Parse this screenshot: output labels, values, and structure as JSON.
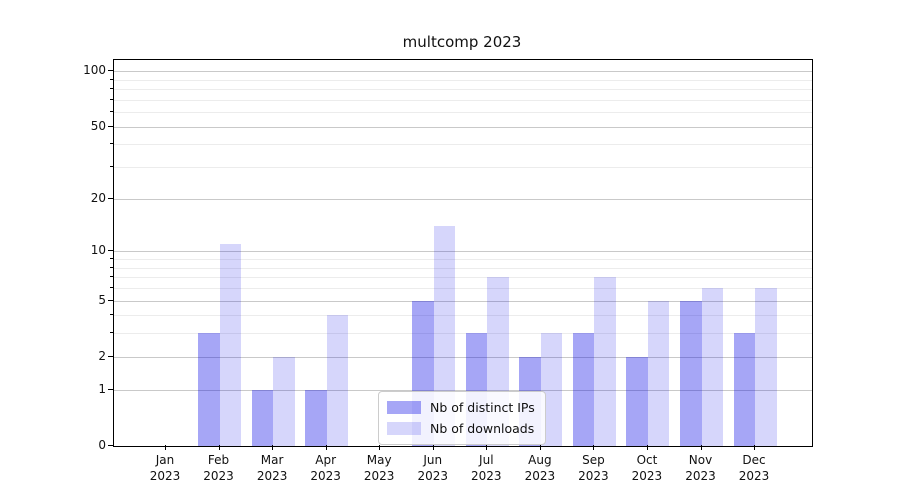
{
  "chart_data": {
    "type": "bar",
    "title": "multcomp 2023",
    "categories": [
      "Jan",
      "Feb",
      "Mar",
      "Apr",
      "May",
      "Jun",
      "Jul",
      "Aug",
      "Sep",
      "Oct",
      "Nov",
      "Dec"
    ],
    "category_year": "2023",
    "series": [
      {
        "name": "Nb of distinct IPs",
        "color": "rgba(0,0,230,0.35)",
        "values": [
          0,
          3,
          1,
          1,
          0,
          5,
          3,
          2,
          3,
          2,
          5,
          3
        ]
      },
      {
        "name": "Nb of downloads",
        "color": "rgba(0,0,230,0.16)",
        "values": [
          0,
          11,
          2,
          4,
          0,
          14,
          7,
          3,
          7,
          5,
          6,
          6
        ]
      }
    ],
    "yticks": [
      0,
      1,
      2,
      5,
      10,
      20,
      50,
      100
    ],
    "minor_gridlines": [
      3,
      4,
      6,
      7,
      8,
      9,
      30,
      40,
      60,
      70,
      80,
      90
    ],
    "scale": "log1p",
    "ylim": [
      0,
      115
    ],
    "grid": true,
    "legend": {
      "entries": [
        "Nb of distinct IPs",
        "Nb of downloads"
      ],
      "position": "lower center"
    }
  },
  "colors": {
    "bar_dark": "rgba(0,0,230,0.35)",
    "bar_light": "rgba(0,0,230,0.16)",
    "grid_major": "#c9c9c9",
    "grid_minor": "#ececec",
    "axis": "#000000",
    "legend_border": "#cccccc"
  }
}
